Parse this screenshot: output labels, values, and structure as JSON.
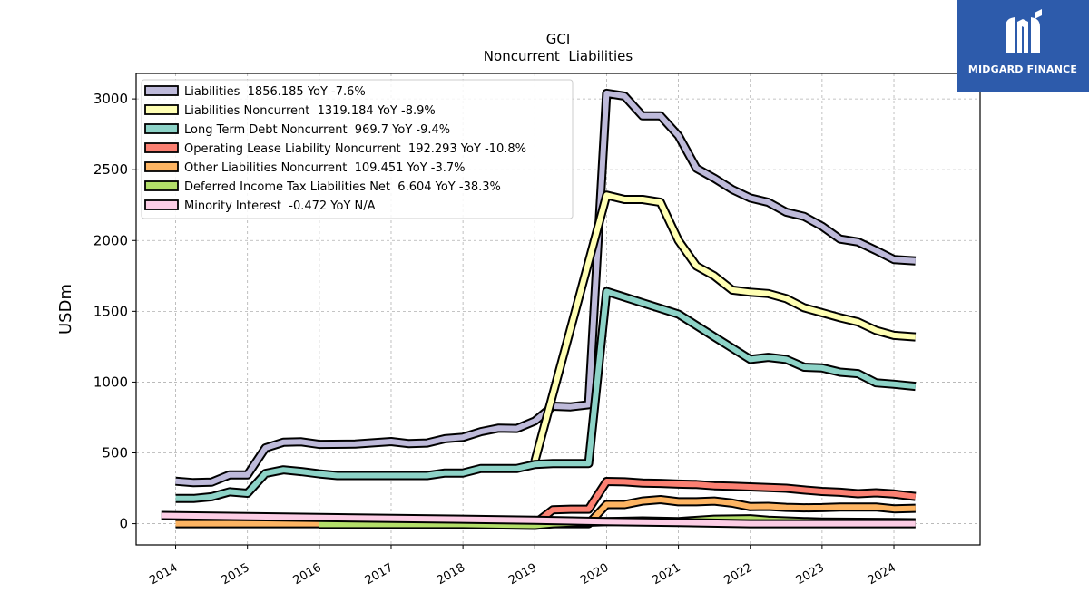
{
  "chart_data": {
    "type": "line",
    "title": "GCI",
    "subtitle": "Noncurrent  Liabilities",
    "ylabel": "USDm",
    "xlabel": "",
    "ylim": [
      -150,
      3180
    ],
    "xlim": [
      2013.45,
      2025.2
    ],
    "yticks": [
      0,
      500,
      1000,
      1500,
      2000,
      2500,
      3000
    ],
    "xticks": [
      "2014",
      "2015",
      "2016",
      "2017",
      "2018",
      "2019",
      "2020",
      "2021",
      "2022",
      "2023",
      "2024"
    ],
    "grid": true,
    "legend_position": "top-left",
    "series": [
      {
        "name": "Liabilities  1856.185 YoY -7.6%",
        "color": "#bebada",
        "points": [
          [
            2014.0,
            300
          ],
          [
            2014.25,
            290
          ],
          [
            2014.5,
            293
          ],
          [
            2014.75,
            345
          ],
          [
            2015.0,
            345
          ],
          [
            2015.25,
            535
          ],
          [
            2015.5,
            575
          ],
          [
            2015.75,
            578
          ],
          [
            2016.0,
            560
          ],
          [
            2016.5,
            562
          ],
          [
            2017.0,
            580
          ],
          [
            2017.25,
            565
          ],
          [
            2017.5,
            570
          ],
          [
            2017.75,
            600
          ],
          [
            2018.0,
            610
          ],
          [
            2018.25,
            650
          ],
          [
            2018.5,
            675
          ],
          [
            2018.75,
            672
          ],
          [
            2019.0,
            725
          ],
          [
            2019.25,
            830
          ],
          [
            2019.5,
            825
          ],
          [
            2019.75,
            840
          ],
          [
            2020.0,
            3040
          ],
          [
            2020.25,
            3020
          ],
          [
            2020.5,
            2880
          ],
          [
            2020.75,
            2880
          ],
          [
            2021.0,
            2740
          ],
          [
            2021.25,
            2510
          ],
          [
            2021.5,
            2440
          ],
          [
            2021.75,
            2360
          ],
          [
            2022.0,
            2300
          ],
          [
            2022.25,
            2270
          ],
          [
            2022.5,
            2200
          ],
          [
            2022.75,
            2170
          ],
          [
            2023.0,
            2100
          ],
          [
            2023.25,
            2010
          ],
          [
            2023.5,
            1990
          ],
          [
            2023.75,
            1930
          ],
          [
            2024.0,
            1866
          ],
          [
            2024.3,
            1856
          ]
        ]
      },
      {
        "name": "Liabilities Noncurrent  1319.184 YoY -8.9%",
        "color": "#ffffb3",
        "points": [
          [
            2019.0,
            440
          ],
          [
            2020.0,
            2320
          ],
          [
            2020.25,
            2290
          ],
          [
            2020.5,
            2290
          ],
          [
            2020.75,
            2270
          ],
          [
            2021.0,
            2000
          ],
          [
            2021.25,
            1820
          ],
          [
            2021.5,
            1750
          ],
          [
            2021.75,
            1650
          ],
          [
            2022.0,
            1635
          ],
          [
            2022.25,
            1625
          ],
          [
            2022.5,
            1590
          ],
          [
            2022.75,
            1525
          ],
          [
            2023.0,
            1490
          ],
          [
            2023.25,
            1455
          ],
          [
            2023.5,
            1425
          ],
          [
            2023.75,
            1365
          ],
          [
            2024.0,
            1330
          ],
          [
            2024.3,
            1319
          ]
        ]
      },
      {
        "name": "Long Term Debt Noncurrent  969.7 YoY -9.4%",
        "color": "#8dd3c7",
        "points": [
          [
            2014.0,
            178
          ],
          [
            2014.25,
            178
          ],
          [
            2014.5,
            190
          ],
          [
            2014.75,
            225
          ],
          [
            2015.0,
            215
          ],
          [
            2015.25,
            355
          ],
          [
            2015.5,
            380
          ],
          [
            2015.75,
            368
          ],
          [
            2016.0,
            352
          ],
          [
            2016.25,
            340
          ],
          [
            2016.5,
            340
          ],
          [
            2017.0,
            340
          ],
          [
            2017.5,
            340
          ],
          [
            2017.75,
            358
          ],
          [
            2018.0,
            358
          ],
          [
            2018.25,
            390
          ],
          [
            2018.5,
            390
          ],
          [
            2018.75,
            390
          ],
          [
            2019.0,
            418
          ],
          [
            2019.25,
            425
          ],
          [
            2019.5,
            425
          ],
          [
            2019.75,
            425
          ],
          [
            2020.0,
            1640
          ],
          [
            2020.25,
            1600
          ],
          [
            2020.5,
            1560
          ],
          [
            2020.75,
            1520
          ],
          [
            2021.0,
            1480
          ],
          [
            2021.25,
            1400
          ],
          [
            2021.5,
            1320
          ],
          [
            2021.75,
            1240
          ],
          [
            2022.0,
            1160
          ],
          [
            2022.25,
            1175
          ],
          [
            2022.5,
            1160
          ],
          [
            2022.75,
            1105
          ],
          [
            2023.0,
            1100
          ],
          [
            2023.25,
            1070
          ],
          [
            2023.5,
            1060
          ],
          [
            2023.75,
            995
          ],
          [
            2024.0,
            985
          ],
          [
            2024.3,
            970
          ]
        ]
      },
      {
        "name": "Operating Lease Liability Noncurrent  192.293 YoY -10.8%",
        "color": "#fb8072",
        "points": [
          [
            2019.0,
            0
          ],
          [
            2019.25,
            98
          ],
          [
            2019.5,
            102
          ],
          [
            2019.75,
            102
          ],
          [
            2020.0,
            298
          ],
          [
            2020.25,
            296
          ],
          [
            2020.5,
            287
          ],
          [
            2020.75,
            285
          ],
          [
            2021.0,
            280
          ],
          [
            2021.25,
            277
          ],
          [
            2021.5,
            268
          ],
          [
            2021.75,
            265
          ],
          [
            2022.0,
            260
          ],
          [
            2022.25,
            255
          ],
          [
            2022.5,
            250
          ],
          [
            2022.75,
            238
          ],
          [
            2023.0,
            228
          ],
          [
            2023.25,
            222
          ],
          [
            2023.5,
            212
          ],
          [
            2023.75,
            218
          ],
          [
            2024.0,
            210
          ],
          [
            2024.3,
            192
          ]
        ]
      },
      {
        "name": "Other Liabilities Noncurrent  109.451 YoY -3.7%",
        "color": "#fdb462",
        "points": [
          [
            2014.0,
            0
          ],
          [
            2016.0,
            0
          ],
          [
            2017.0,
            0
          ],
          [
            2018.0,
            0
          ],
          [
            2019.0,
            0
          ],
          [
            2019.75,
            0
          ],
          [
            2020.0,
            135
          ],
          [
            2020.25,
            135
          ],
          [
            2020.5,
            160
          ],
          [
            2020.75,
            170
          ],
          [
            2021.0,
            155
          ],
          [
            2021.25,
            155
          ],
          [
            2021.5,
            160
          ],
          [
            2021.75,
            145
          ],
          [
            2022.0,
            120
          ],
          [
            2022.25,
            122
          ],
          [
            2022.5,
            115
          ],
          [
            2022.75,
            112
          ],
          [
            2023.0,
            113
          ],
          [
            2023.25,
            118
          ],
          [
            2023.5,
            118
          ],
          [
            2023.75,
            118
          ],
          [
            2024.0,
            105
          ],
          [
            2024.3,
            109
          ]
        ]
      },
      {
        "name": "Deferred Income Tax Liabilities Net  6.604 YoY -38.3%",
        "color": "#b3de69",
        "points": [
          [
            2016.0,
            -5
          ],
          [
            2017.0,
            -5
          ],
          [
            2018.0,
            -5
          ],
          [
            2019.0,
            -12
          ],
          [
            2019.25,
            0
          ],
          [
            2020.0,
            15
          ],
          [
            2020.5,
            20
          ],
          [
            2021.0,
            15
          ],
          [
            2021.5,
            32
          ],
          [
            2022.0,
            35
          ],
          [
            2022.25,
            25
          ],
          [
            2022.75,
            15
          ],
          [
            2023.0,
            12
          ],
          [
            2023.5,
            10
          ],
          [
            2024.0,
            9
          ],
          [
            2024.3,
            7
          ]
        ]
      },
      {
        "name": "Minority Interest  -0.472 YoY N/A",
        "color": "#fccde5",
        "points": [
          [
            2013.8,
            58
          ],
          [
            2019.0,
            25
          ],
          [
            2020.0,
            15
          ],
          [
            2021.0,
            8
          ],
          [
            2022.0,
            0
          ],
          [
            2023.0,
            0
          ],
          [
            2024.3,
            0
          ]
        ]
      }
    ]
  },
  "logo": {
    "name": "MIDGARD FINANCE"
  }
}
